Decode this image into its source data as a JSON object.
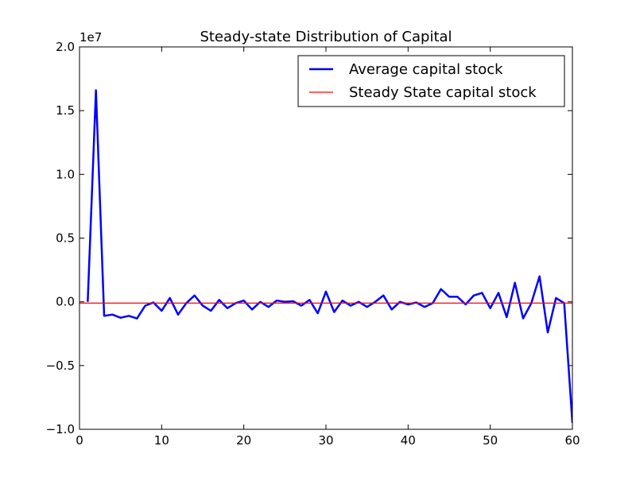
{
  "chart_data": {
    "type": "line",
    "title": "Steady-state Distribution of Capital",
    "xlabel": "",
    "ylabel": "",
    "y_offset_label": "1e7",
    "xlim": [
      0,
      60
    ],
    "ylim": [
      -1.0,
      2.0
    ],
    "x_ticks": [
      0,
      10,
      20,
      30,
      40,
      50,
      60
    ],
    "x_tick_labels": [
      "0",
      "10",
      "20",
      "30",
      "40",
      "50",
      "60"
    ],
    "y_ticks": [
      -1.0,
      -0.5,
      0.0,
      0.5,
      1.0,
      1.5,
      2.0
    ],
    "y_tick_labels": [
      "−1.0",
      "−0.5",
      "0.0",
      "0.5",
      "1.0",
      "1.5",
      "2.0"
    ],
    "grid": false,
    "legend_position": "top-right",
    "series": [
      {
        "name": "Average capital stock",
        "color": "#0000ff",
        "x": [
          1,
          2,
          3,
          4,
          5,
          6,
          7,
          8,
          9,
          10,
          11,
          12,
          13,
          14,
          15,
          16,
          17,
          18,
          19,
          20,
          21,
          22,
          23,
          24,
          25,
          26,
          27,
          28,
          29,
          30,
          31,
          32,
          33,
          34,
          35,
          36,
          37,
          38,
          39,
          40,
          41,
          42,
          43,
          44,
          45,
          46,
          47,
          48,
          49,
          50,
          51,
          52,
          53,
          54,
          55,
          56,
          57,
          58,
          59,
          60
        ],
        "y": [
          0.0,
          1.66,
          -0.11,
          -0.1,
          -0.125,
          -0.11,
          -0.13,
          -0.03,
          -0.005,
          -0.07,
          0.03,
          -0.1,
          -0.01,
          0.05,
          -0.03,
          -0.07,
          0.015,
          -0.05,
          -0.01,
          0.01,
          -0.06,
          0.0,
          -0.04,
          0.01,
          0.0,
          0.005,
          -0.03,
          0.015,
          -0.09,
          0.08,
          -0.08,
          0.01,
          -0.03,
          0.0,
          -0.04,
          0.0,
          0.05,
          -0.06,
          0.0,
          -0.02,
          -0.005,
          -0.04,
          -0.01,
          0.1,
          0.04,
          0.04,
          -0.02,
          0.05,
          0.07,
          -0.05,
          0.07,
          -0.12,
          0.15,
          -0.13,
          -0.01,
          0.2,
          -0.24,
          0.03,
          -0.01,
          -0.95
        ]
      },
      {
        "name": "Steady State capital stock",
        "color": "#ff0000",
        "x": [
          0,
          60
        ],
        "y": [
          -0.01,
          -0.01
        ]
      }
    ]
  }
}
